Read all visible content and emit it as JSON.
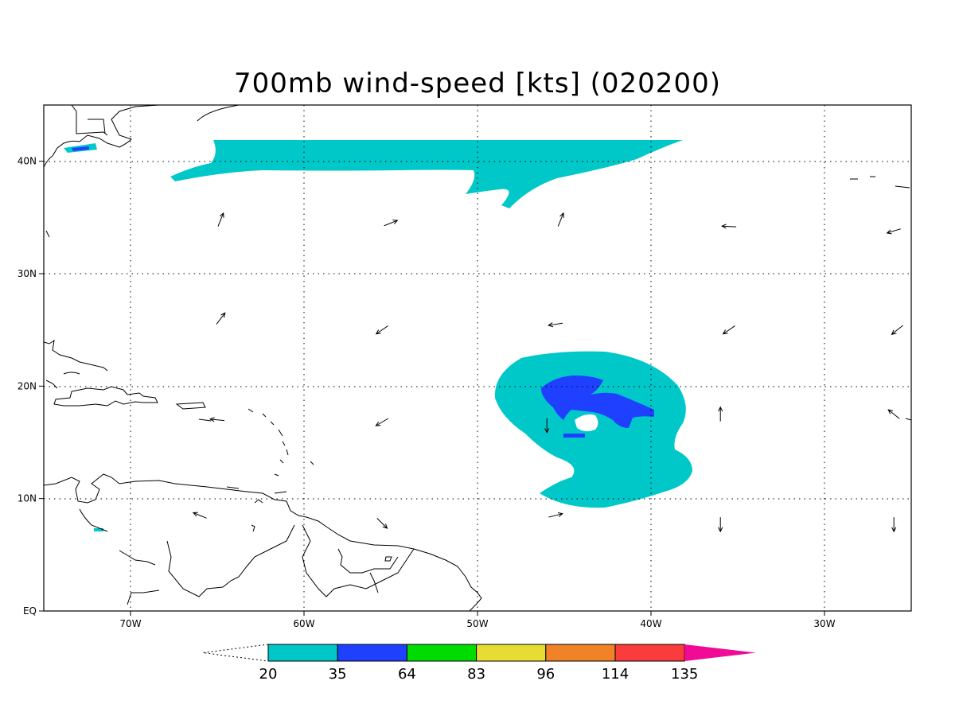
{
  "title": "700mb wind-speed [kts] (020200)",
  "lon_range": [
    -75,
    -25
  ],
  "lat_range": [
    0,
    45
  ],
  "x_ticks": [
    {
      "lon": -70,
      "label": "70W"
    },
    {
      "lon": -60,
      "label": "60W"
    },
    {
      "lon": -50,
      "label": "50W"
    },
    {
      "lon": -40,
      "label": "40W"
    },
    {
      "lon": -30,
      "label": "30W"
    }
  ],
  "y_ticks": [
    {
      "lat": 0,
      "label": "EQ"
    },
    {
      "lat": 10,
      "label": "10N"
    },
    {
      "lat": 20,
      "label": "20N"
    },
    {
      "lat": 30,
      "label": "30N"
    },
    {
      "lat": 40,
      "label": "40N"
    }
  ],
  "colorbar": {
    "levels": [
      "20",
      "35",
      "64",
      "83",
      "96",
      "114",
      "135"
    ],
    "colors": [
      "#00c8c8",
      "#2040ff",
      "#00dc00",
      "#e6dc32",
      "#f08228",
      "#fa3c3c",
      "#f00a96"
    ]
  },
  "wind_arrows": [
    {
      "lon": -64.8,
      "lat": 34.8,
      "u": 0.4,
      "v": 1
    },
    {
      "lon": -55.0,
      "lat": 34.5,
      "u": 1,
      "v": 0.4
    },
    {
      "lon": -45.2,
      "lat": 34.8,
      "u": 0.4,
      "v": 1
    },
    {
      "lon": -35.5,
      "lat": 34.2,
      "u": -1,
      "v": 0.05
    },
    {
      "lon": -26.0,
      "lat": 33.8,
      "u": -1,
      "v": -0.3
    },
    {
      "lon": -64.8,
      "lat": 26.0,
      "u": 0.6,
      "v": 0.8
    },
    {
      "lon": -55.5,
      "lat": 25.0,
      "u": -0.8,
      "v": -0.55
    },
    {
      "lon": -45.5,
      "lat": 25.5,
      "u": -1,
      "v": -0.15
    },
    {
      "lon": -35.5,
      "lat": 25.0,
      "u": -0.8,
      "v": -0.55
    },
    {
      "lon": -25.8,
      "lat": 25.0,
      "u": -0.75,
      "v": -0.6
    },
    {
      "lon": -65.0,
      "lat": 17.0,
      "u": -1,
      "v": 0.1
    },
    {
      "lon": -55.5,
      "lat": 16.8,
      "u": -0.85,
      "v": -0.5
    },
    {
      "lon": -46.0,
      "lat": 16.5,
      "u": 0,
      "v": -1
    },
    {
      "lon": -36.0,
      "lat": 17.5,
      "u": 0,
      "v": 1
    },
    {
      "lon": -26.0,
      "lat": 17.5,
      "u": -0.75,
      "v": 0.6
    },
    {
      "lon": -66.0,
      "lat": 8.5,
      "u": -0.85,
      "v": 0.35
    },
    {
      "lon": -55.5,
      "lat": 7.8,
      "u": 0.7,
      "v": -0.7
    },
    {
      "lon": -45.5,
      "lat": 8.5,
      "u": 1,
      "v": 0.25
    },
    {
      "lon": -36.0,
      "lat": 7.7,
      "u": 0,
      "v": -1
    },
    {
      "lon": -26.0,
      "lat": 7.7,
      "u": 0,
      "v": -1
    }
  ]
}
